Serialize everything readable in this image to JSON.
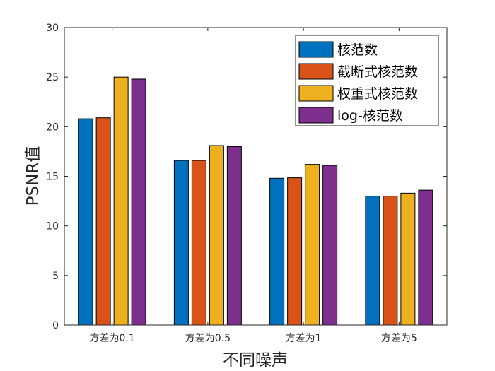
{
  "chart_data": {
    "type": "bar",
    "title": "",
    "xlabel": "不同噪声",
    "ylabel": "PSNR值",
    "categories": [
      "方差为0.1",
      "方差为0.5",
      "方差为1",
      "方差为5"
    ],
    "ylim": [
      0,
      30
    ],
    "yticks": [
      "0",
      "5",
      "10",
      "15",
      "20",
      "25",
      "30"
    ],
    "grid": false,
    "legend_position": "top-right",
    "series": [
      {
        "name": "核范数",
        "color": "#0072BD",
        "values": [
          20.8,
          16.6,
          14.8,
          13.0
        ]
      },
      {
        "name": "截断式核范数",
        "color": "#D95319",
        "values": [
          20.9,
          16.6,
          14.85,
          13.0
        ]
      },
      {
        "name": "权重式核范数",
        "color": "#EDB120",
        "values": [
          25.0,
          18.1,
          16.2,
          13.3
        ]
      },
      {
        "name": "log-核范数",
        "color": "#7E2F8E",
        "values": [
          24.8,
          18.0,
          16.1,
          13.6
        ]
      }
    ]
  }
}
